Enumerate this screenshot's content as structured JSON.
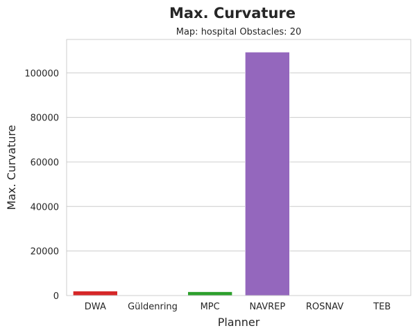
{
  "chart_data": {
    "type": "bar",
    "title": "Max. Curvature",
    "subtitle": "Map: hospital Obstacles: 20",
    "xlabel": "Planner",
    "ylabel": "Max. Curvature",
    "categories": [
      "DWA",
      "Güldenring",
      "MPC",
      "NAVREP",
      "ROSNAV",
      "TEB"
    ],
    "values": [
      2000,
      0,
      1700,
      109300,
      0,
      0
    ],
    "colors": [
      "#d62728",
      "#8c564b",
      "#2ca02c",
      "#9467bd",
      "#1f77b4",
      "#ff7f0e"
    ],
    "ylim": [
      0,
      115000
    ],
    "yticks": [
      0,
      20000,
      40000,
      60000,
      80000,
      100000
    ],
    "ytick_labels": [
      "0",
      "20000",
      "40000",
      "60000",
      "80000",
      "100000"
    ],
    "grid": true,
    "legend": "none"
  }
}
